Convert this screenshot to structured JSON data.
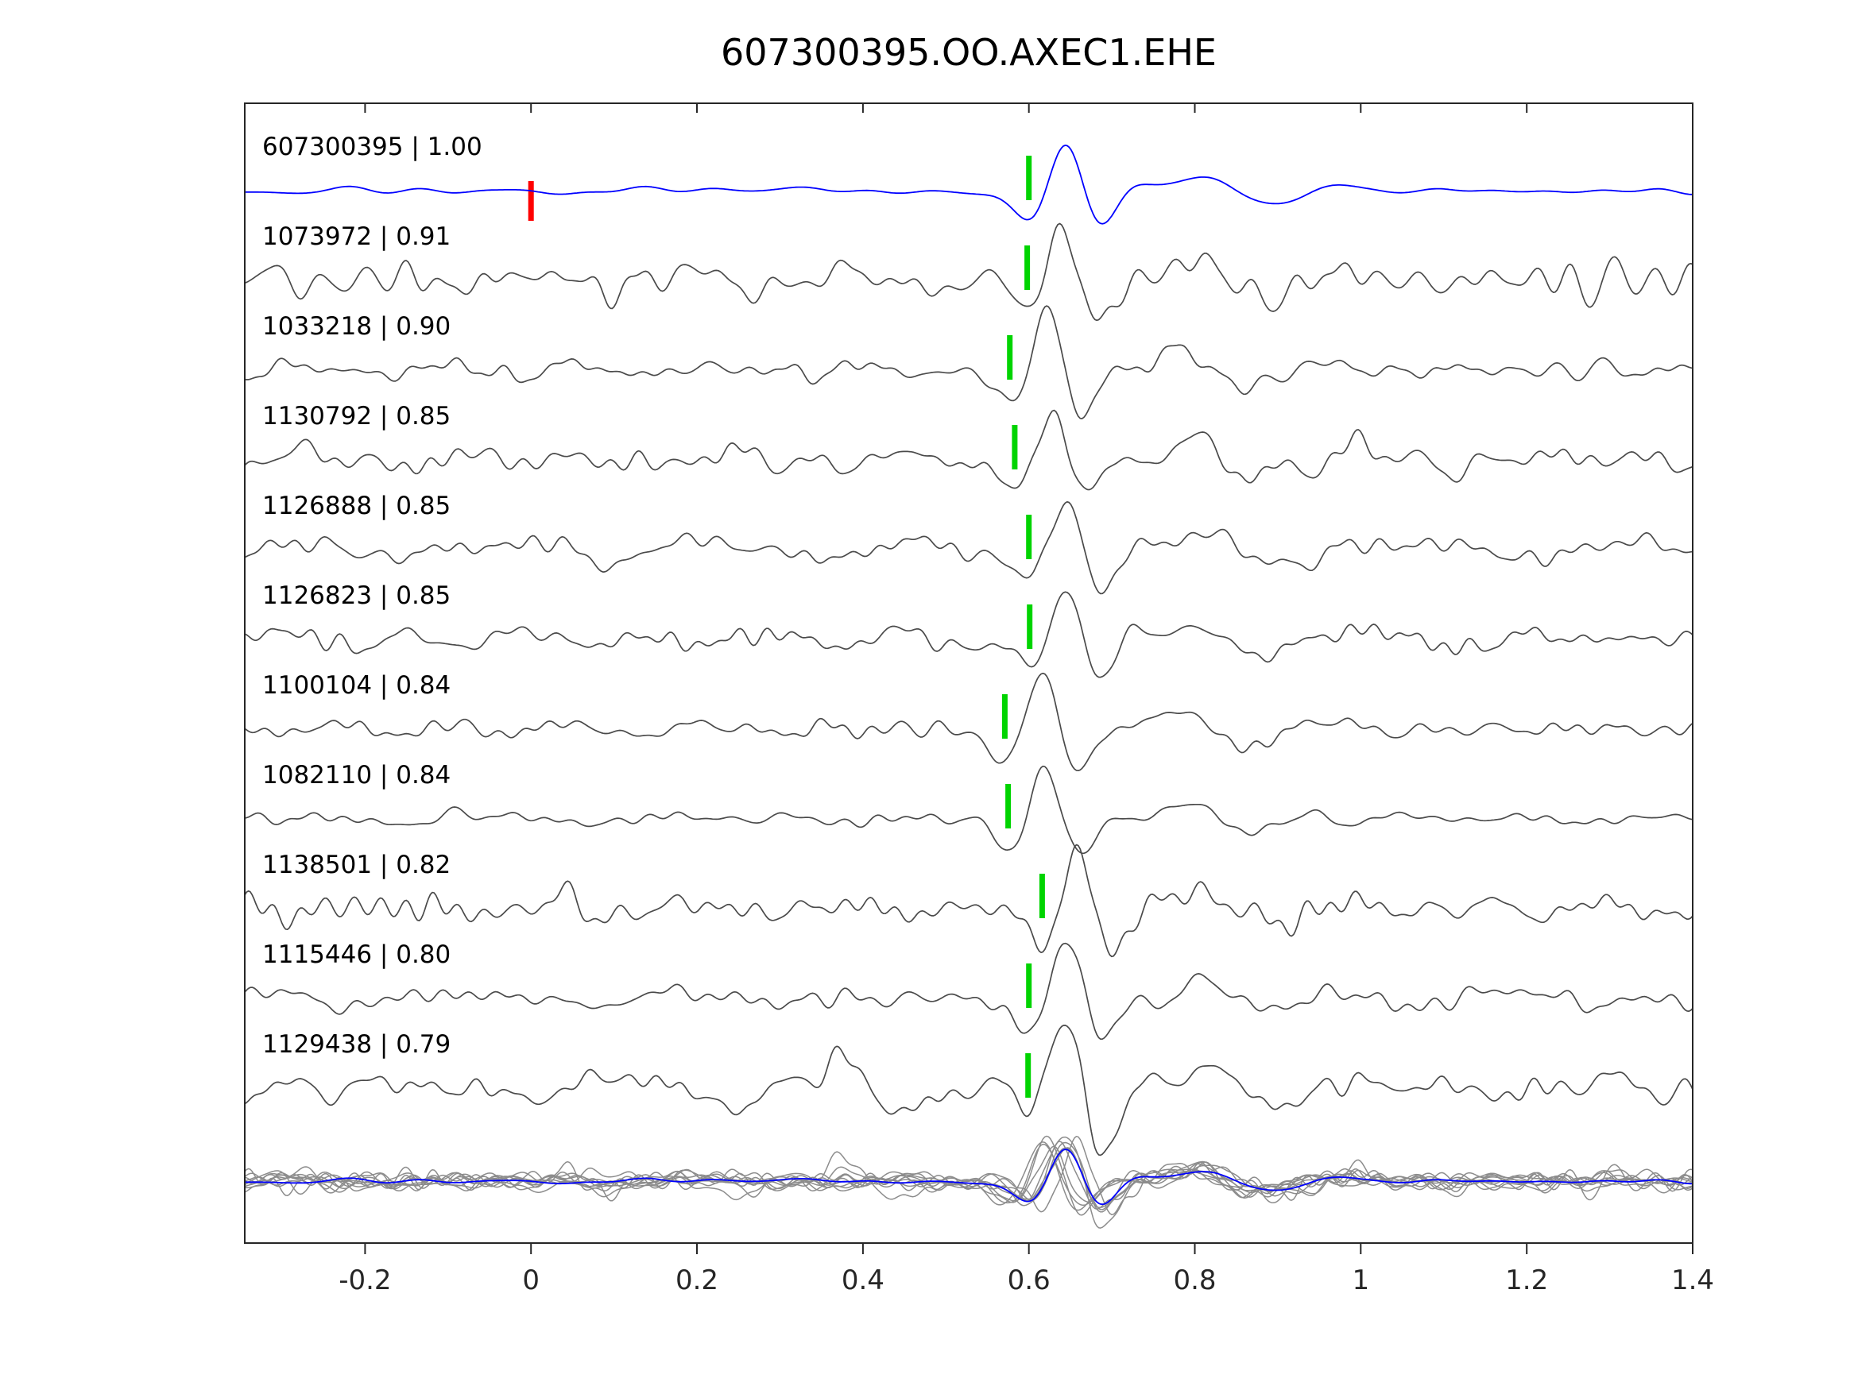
{
  "chart_data": {
    "type": "line",
    "title": "607300395.OO.AXEC1.EHE",
    "xlabel": "",
    "ylabel": "",
    "xlim": [
      -0.345,
      1.4
    ],
    "grid": false,
    "legend": "none",
    "x_ticks": [
      {
        "value": -0.2,
        "label": "-0.2"
      },
      {
        "value": 0,
        "label": "0"
      },
      {
        "value": 0.2,
        "label": "0.2"
      },
      {
        "value": 0.4,
        "label": "0.4"
      },
      {
        "value": 0.6,
        "label": "0.6"
      },
      {
        "value": 0.8,
        "label": "0.8"
      },
      {
        "value": 1,
        "label": "1"
      },
      {
        "value": 1.2,
        "label": "1.2"
      },
      {
        "value": 1.4,
        "label": "1.4"
      }
    ],
    "colors": {
      "template_trace": "#0000ff",
      "detection_trace": "#4a4a4a",
      "overlay_trace": "#8c8c8c",
      "pick_marker": "#00d400",
      "template_origin_marker": "#ff0000",
      "axis": "#262626",
      "text": "#000000"
    },
    "traces": [
      {
        "label": "607300395 | 1.00",
        "id": "607300395",
        "similarity": 1.0,
        "is_template": true,
        "pick_time": 0.6,
        "origin_marker_time": 0.0,
        "noise_amp": 0.1,
        "arrival_amp": 1.0,
        "smooth": true,
        "seed": 101
      },
      {
        "label": "1073972 | 0.91",
        "id": "1073972",
        "similarity": 0.91,
        "is_template": false,
        "pick_time": 0.598,
        "noise_amp": 0.47,
        "arrival_amp": 1.15,
        "smooth": false,
        "seed": 202
      },
      {
        "label": "1033218 | 0.90",
        "id": "1033218",
        "similarity": 0.9,
        "is_template": false,
        "pick_time": 0.577,
        "noise_amp": 0.26,
        "arrival_amp": 1.3,
        "smooth": false,
        "seed": 303
      },
      {
        "label": "1130792 | 0.85",
        "id": "1130792",
        "similarity": 0.85,
        "is_template": false,
        "pick_time": 0.583,
        "noise_amp": 0.42,
        "arrival_amp": 1.05,
        "smooth": false,
        "seed": 404
      },
      {
        "label": "1126888 | 0.85",
        "id": "1126888",
        "similarity": 0.85,
        "is_template": false,
        "pick_time": 0.6,
        "noise_amp": 0.35,
        "arrival_amp": 1.05,
        "smooth": false,
        "seed": 505
      },
      {
        "label": "1126823 | 0.85",
        "id": "1126823",
        "similarity": 0.85,
        "is_template": false,
        "pick_time": 0.601,
        "noise_amp": 0.32,
        "arrival_amp": 1.05,
        "smooth": false,
        "seed": 606
      },
      {
        "label": "1100104 | 0.84",
        "id": "1100104",
        "similarity": 0.84,
        "is_template": false,
        "pick_time": 0.571,
        "noise_amp": 0.26,
        "arrival_amp": 1.15,
        "smooth": false,
        "seed": 707
      },
      {
        "label": "1082110 | 0.84",
        "id": "1082110",
        "similarity": 0.84,
        "is_template": false,
        "pick_time": 0.575,
        "noise_amp": 0.21,
        "arrival_amp": 1.1,
        "smooth": false,
        "seed": 808
      },
      {
        "label": "1138501 | 0.82",
        "id": "1138501",
        "similarity": 0.82,
        "is_template": false,
        "pick_time": 0.616,
        "noise_amp": 0.45,
        "arrival_amp": 1.4,
        "smooth": false,
        "seed": 909
      },
      {
        "label": "1115446 | 0.80",
        "id": "1115446",
        "similarity": 0.8,
        "is_template": false,
        "pick_time": 0.6,
        "noise_amp": 0.32,
        "arrival_amp": 1.3,
        "smooth": false,
        "seed": 1010
      },
      {
        "label": "1129438 | 0.79",
        "id": "1129438",
        "similarity": 0.79,
        "is_template": false,
        "pick_time": 0.599,
        "noise_amp": 0.58,
        "arrival_amp": 1.0,
        "smooth": false,
        "seed": 1111
      }
    ],
    "overlay_row": {
      "description": "All detection traces overlaid with the blue template trace",
      "amplitude_scale": 0.7
    }
  }
}
